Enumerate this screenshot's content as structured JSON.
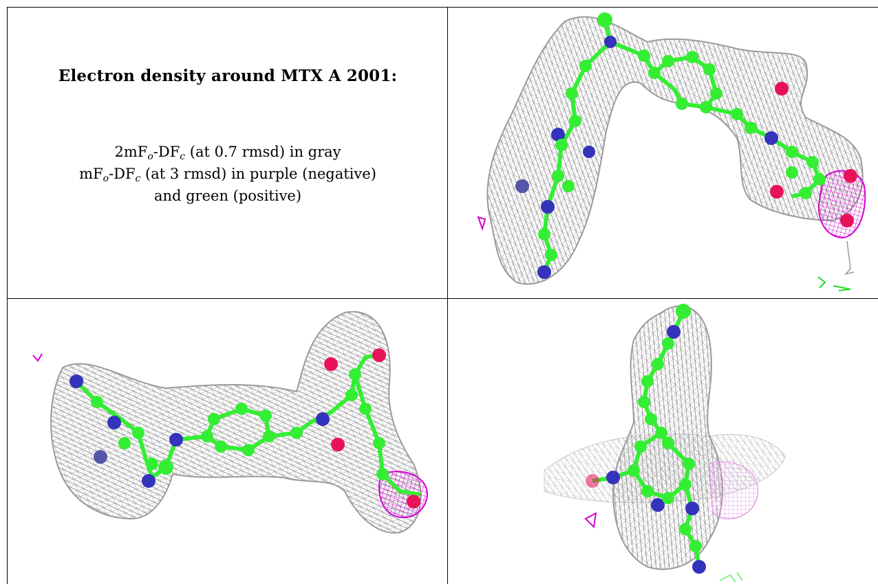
{
  "caption": {
    "title": "Electron density around MTX A 2001:",
    "line1_lead": "2mF",
    "line1_sub1": "o",
    "line1_mid": "-DF",
    "line1_sub2": "c",
    "line1_tail": " (at 0.7 rmsd) in gray",
    "line2_lead": "mF",
    "line2_sub1": "o",
    "line2_mid": "-DF",
    "line2_sub2": "c",
    "line2_tail": " (at 3 rmsd) in purple (negative)",
    "line3": "and green (positive)"
  },
  "colors": {
    "mesh": "#9a9a9a",
    "carbon": "#33ee33",
    "nitrogen": "#3333bb",
    "oxygen": "#e8125a",
    "negative_density": "#d400d4",
    "positive_density": "#22dd22"
  },
  "panels": [
    {
      "name": "view-top-right"
    },
    {
      "name": "view-bottom-left"
    },
    {
      "name": "view-bottom-right"
    }
  ]
}
